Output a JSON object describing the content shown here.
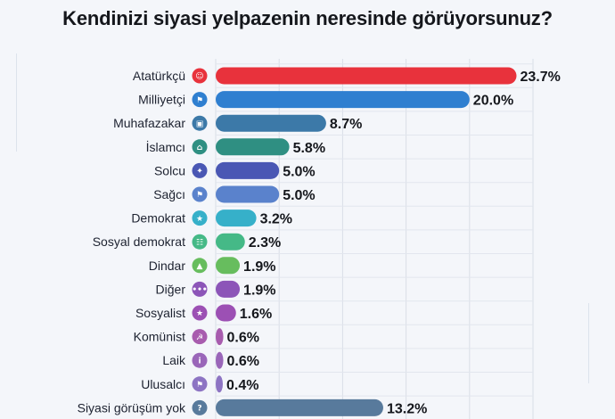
{
  "title": "Kendinizi siyasi yelpazenin neresinde görüyorsunuz?",
  "chart_data": {
    "type": "bar",
    "orientation": "horizontal",
    "title": "Kendinizi siyasi yelpazenin neresinde görüyorsunuz?",
    "xlabel": "",
    "ylabel": "",
    "xlim": [
      0,
      25
    ],
    "grid": true,
    "categories": [
      "Atatürkçü",
      "Milliyetçi",
      "Muhafazakar",
      "İslamcı",
      "Solcu",
      "Sağcı",
      "Demokrat",
      "Sosyal demokrat",
      "Dindar",
      "Diğer",
      "Sosyalist",
      "Komünist",
      "Laik",
      "Ulusalcı",
      "Siyasi görüşüm yok"
    ],
    "values": [
      23.7,
      20.0,
      8.7,
      5.8,
      5.0,
      5.0,
      3.2,
      2.3,
      1.9,
      1.9,
      1.6,
      0.6,
      0.6,
      0.4,
      13.2
    ],
    "value_labels": [
      "23.7%",
      "20.0%",
      "8.7%",
      "5.8%",
      "5.0%",
      "5.0%",
      "3.2%",
      "2.3%",
      "1.9%",
      "1.9%",
      "1.6%",
      "0.6%",
      "0.6%",
      "0.4%",
      "13.2%"
    ],
    "colors": [
      "#e8323c",
      "#2f7fd0",
      "#3c79a8",
      "#2f8f82",
      "#4a57b4",
      "#5a82cc",
      "#36b0c9",
      "#45b987",
      "#67bd5e",
      "#8c55b8",
      "#9c50b4",
      "#a85cae",
      "#9a66b9",
      "#8d74c3",
      "#587a9c"
    ],
    "icons": [
      "person-icon",
      "flag-icon",
      "briefcase-icon",
      "mosque-icon",
      "figure-icon",
      "flag-icon",
      "star-icon",
      "group-icon",
      "prayer-icon",
      "dots-icon",
      "star-icon",
      "hammer-sickle-icon",
      "info-icon",
      "flag-icon",
      "question-icon"
    ],
    "icon_glyphs": [
      "☺",
      "⚑",
      "▣",
      "⌂",
      "✦",
      "⚑",
      "★",
      "☷",
      "▲",
      "•••",
      "★",
      "☭",
      "i",
      "⚑",
      "?"
    ]
  }
}
